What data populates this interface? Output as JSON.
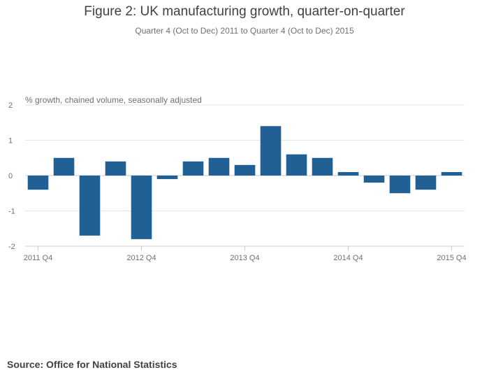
{
  "chart_data": {
    "type": "bar",
    "title": "Figure 2: UK manufacturing growth, quarter-on-quarter",
    "subtitle": "Quarter 4 (Oct to Dec) 2011 to Quarter 4 (Oct to Dec) 2015",
    "ylabel": "% growth, chained volume, seasonally adjusted",
    "xlabel": "",
    "ylim": [
      -2,
      2
    ],
    "yticks": [
      2,
      1,
      0,
      -1,
      -2
    ],
    "categories": [
      "2011 Q4",
      "2012 Q1",
      "2012 Q2",
      "2012 Q3",
      "2012 Q4",
      "2013 Q1",
      "2013 Q2",
      "2013 Q3",
      "2013 Q4",
      "2014 Q1",
      "2014 Q2",
      "2014 Q3",
      "2014 Q4",
      "2015 Q1",
      "2015 Q2",
      "2015 Q3",
      "2015 Q4"
    ],
    "values": [
      -0.4,
      0.5,
      -1.7,
      0.4,
      -1.8,
      -0.1,
      0.4,
      0.5,
      0.3,
      1.4,
      0.6,
      0.5,
      0.1,
      -0.2,
      -0.5,
      -0.4,
      0.1
    ],
    "xtick_labels": [
      "2011 Q4",
      "2012 Q4",
      "2013 Q4",
      "2014 Q4",
      "2015 Q4"
    ],
    "bar_color": "#206095",
    "grid": true
  },
  "source": "Source: Office for National Statistics"
}
